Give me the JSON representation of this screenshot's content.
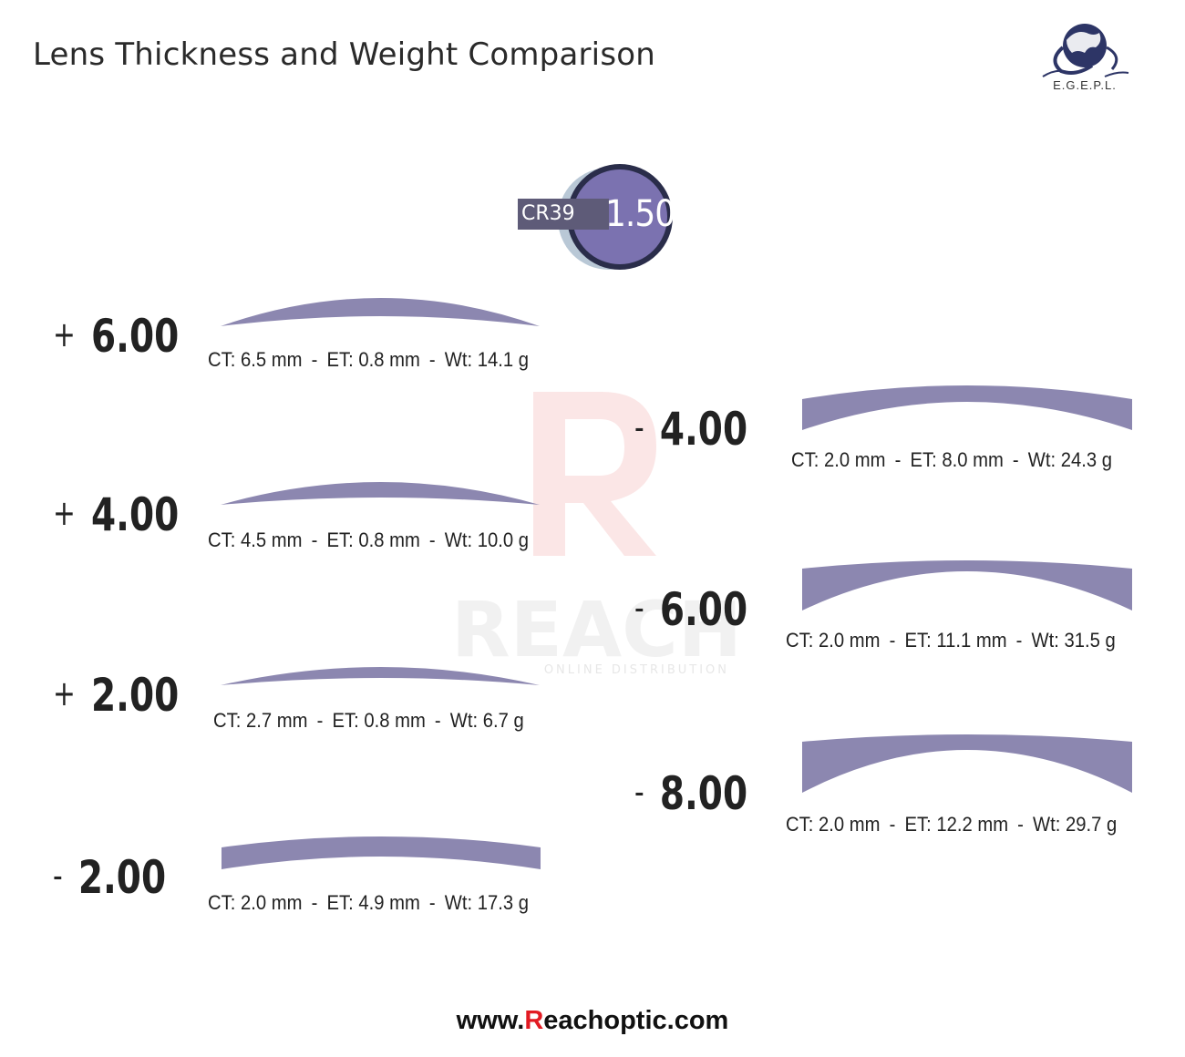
{
  "title": "Lens Thickness and Weight Comparison",
  "logo": {
    "text": "E.G.E.P.L.",
    "icon": "globe-eagle-logo-icon"
  },
  "badge": {
    "type": "CR39",
    "index": "1.50",
    "color": "#7b72b0"
  },
  "lens_color": "#8c87b0",
  "watermark": {
    "letter": "R",
    "word": "REACH",
    "sub": "ONLINE DISTRIBUTION"
  },
  "lenses": [
    {
      "sign": "+",
      "power": "6.00",
      "ct": "CT: 6.5 mm",
      "et": "ET: 0.8 mm",
      "wt": "Wt: 14.1 g"
    },
    {
      "sign": "+",
      "power": "4.00",
      "ct": "CT: 4.5 mm",
      "et": "ET: 0.8 mm",
      "wt": "Wt: 10.0 g"
    },
    {
      "sign": "+",
      "power": "2.00",
      "ct": "CT: 2.7 mm",
      "et": "ET: 0.8 mm",
      "wt": "Wt: 6.7 g"
    },
    {
      "sign": "-",
      "power": "2.00",
      "ct": "CT: 2.0 mm",
      "et": "ET: 4.9 mm",
      "wt": "Wt: 17.3 g"
    },
    {
      "sign": "-",
      "power": "4.00",
      "ct": "CT: 2.0 mm",
      "et": "ET: 8.0 mm",
      "wt": "Wt: 24.3 g"
    },
    {
      "sign": "-",
      "power": "6.00",
      "ct": "CT: 2.0 mm",
      "et": "ET: 11.1 mm",
      "wt": "Wt: 31.5 g"
    },
    {
      "sign": "-",
      "power": "8.00",
      "ct": "CT: 2.0 mm",
      "et": "ET: 12.2 mm",
      "wt": "Wt: 29.7 g"
    }
  ],
  "footer": {
    "prefix": "www.",
    "highlight": "R",
    "suffix": "eachoptic.com"
  }
}
